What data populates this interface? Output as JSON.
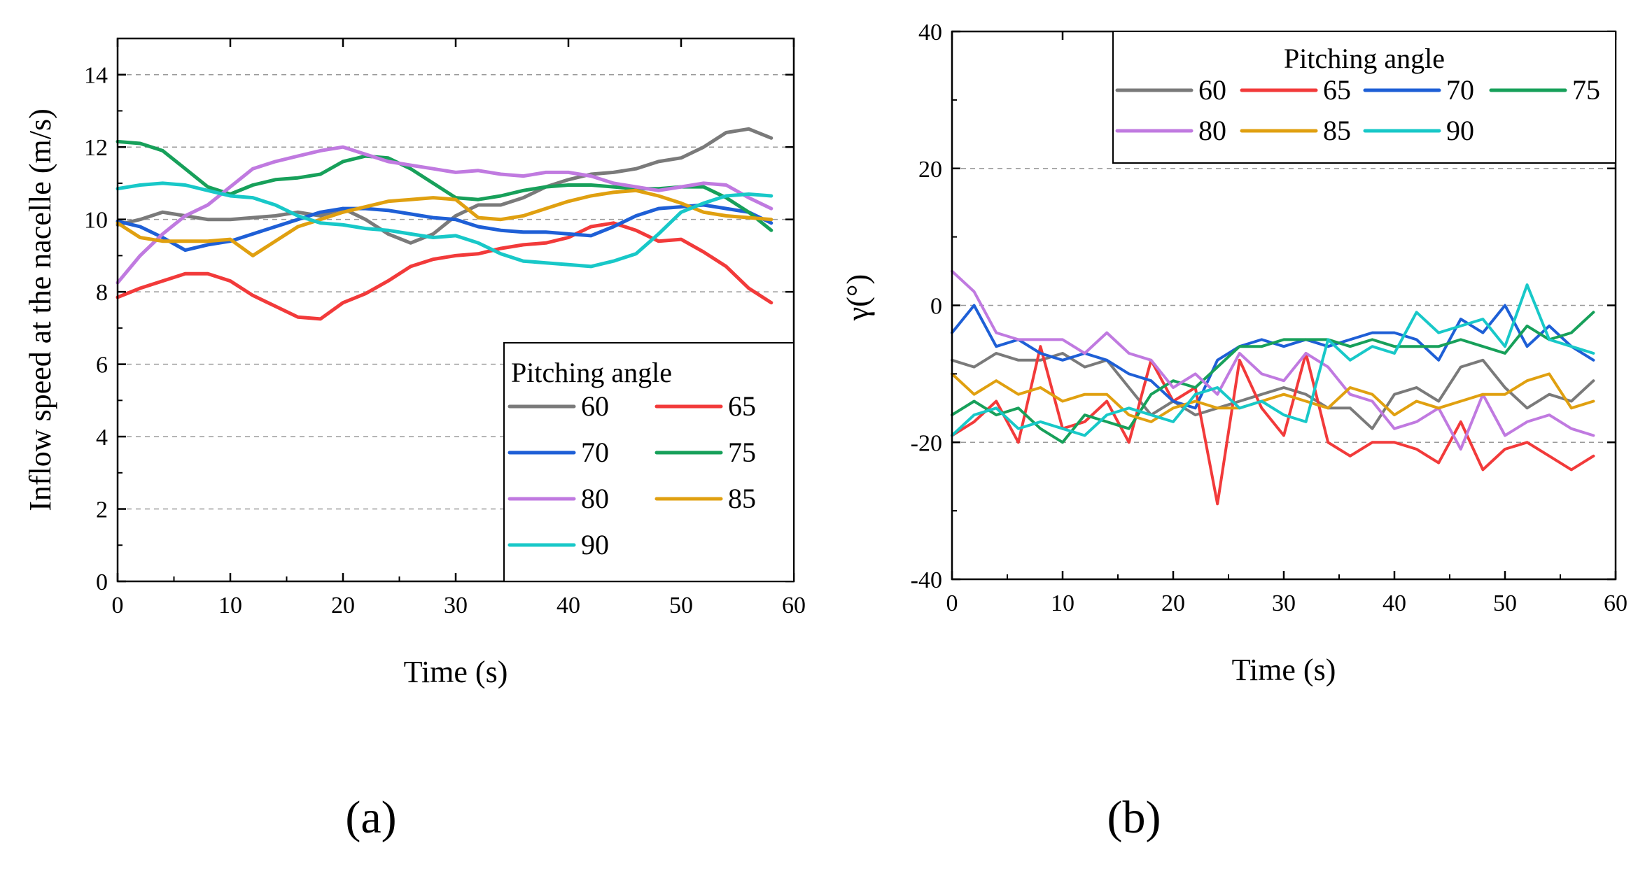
{
  "figure": {
    "panel_labels": [
      "(a)",
      "(b)"
    ],
    "colors": {
      "60": "#7a7a7a",
      "65": "#f23a3a",
      "70": "#1e5fd6",
      "75": "#17a05a",
      "80": "#c07ae0",
      "85": "#e0a010",
      "90": "#18c8c8"
    }
  },
  "chart_data": [
    {
      "type": "line",
      "title": "",
      "xlabel": "Time (s)",
      "ylabel": "Inflow speed at the nacelle (m/s)",
      "xlim": [
        0,
        60
      ],
      "ylim": [
        0,
        15
      ],
      "xticks": [
        0,
        10,
        20,
        30,
        40,
        50,
        60
      ],
      "yticks": [
        0,
        2,
        4,
        6,
        8,
        10,
        12,
        14
      ],
      "grid": "horizontal-dashed",
      "legend": {
        "title": "Pitching angle",
        "position": "bottom-right",
        "columns": 2
      },
      "x": [
        0,
        2,
        4,
        6,
        8,
        10,
        12,
        14,
        16,
        18,
        20,
        22,
        24,
        26,
        28,
        30,
        32,
        34,
        36,
        38,
        40,
        42,
        44,
        46,
        48,
        50,
        52,
        54,
        56,
        58
      ],
      "series": [
        {
          "name": "60",
          "values": [
            9.85,
            10.0,
            10.2,
            10.1,
            10.0,
            10.0,
            10.05,
            10.1,
            10.2,
            10.1,
            10.3,
            10.0,
            9.6,
            9.35,
            9.6,
            10.1,
            10.4,
            10.4,
            10.6,
            10.9,
            11.1,
            11.25,
            11.3,
            11.4,
            11.6,
            11.7,
            12.0,
            12.4,
            12.5,
            12.25
          ]
        },
        {
          "name": "65",
          "values": [
            7.85,
            8.1,
            8.3,
            8.5,
            8.5,
            8.3,
            7.9,
            7.6,
            7.3,
            7.25,
            7.7,
            7.95,
            8.3,
            8.7,
            8.9,
            9.0,
            9.05,
            9.2,
            9.3,
            9.35,
            9.5,
            9.8,
            9.9,
            9.7,
            9.4,
            9.45,
            9.1,
            8.7,
            8.1,
            7.7
          ]
        },
        {
          "name": "70",
          "values": [
            9.95,
            9.8,
            9.5,
            9.15,
            9.3,
            9.4,
            9.6,
            9.8,
            10.0,
            10.2,
            10.3,
            10.3,
            10.25,
            10.15,
            10.05,
            10.0,
            9.8,
            9.7,
            9.65,
            9.65,
            9.6,
            9.55,
            9.8,
            10.1,
            10.3,
            10.35,
            10.4,
            10.3,
            10.2,
            9.9
          ]
        },
        {
          "name": "75",
          "values": [
            12.15,
            12.1,
            11.9,
            11.4,
            10.9,
            10.7,
            10.95,
            11.1,
            11.15,
            11.25,
            11.6,
            11.75,
            11.7,
            11.4,
            11.0,
            10.6,
            10.55,
            10.65,
            10.8,
            10.9,
            10.95,
            10.95,
            10.9,
            10.85,
            10.85,
            10.9,
            10.9,
            10.6,
            10.2,
            9.7
          ]
        },
        {
          "name": "80",
          "values": [
            8.25,
            9.0,
            9.6,
            10.1,
            10.4,
            10.9,
            11.4,
            11.6,
            11.75,
            11.9,
            12.0,
            11.8,
            11.6,
            11.5,
            11.4,
            11.3,
            11.35,
            11.25,
            11.2,
            11.3,
            11.3,
            11.2,
            11.0,
            10.9,
            10.8,
            10.9,
            11.0,
            10.95,
            10.6,
            10.3
          ]
        },
        {
          "name": "85",
          "values": [
            9.9,
            9.5,
            9.4,
            9.4,
            9.4,
            9.45,
            9.0,
            9.4,
            9.8,
            10.0,
            10.2,
            10.35,
            10.5,
            10.55,
            10.6,
            10.55,
            10.05,
            10.0,
            10.1,
            10.3,
            10.5,
            10.65,
            10.75,
            10.8,
            10.65,
            10.45,
            10.2,
            10.1,
            10.05,
            10.0
          ]
        },
        {
          "name": "90",
          "values": [
            10.85,
            10.95,
            11.0,
            10.95,
            10.8,
            10.65,
            10.6,
            10.4,
            10.1,
            9.9,
            9.85,
            9.75,
            9.7,
            9.6,
            9.5,
            9.55,
            9.35,
            9.05,
            8.85,
            8.8,
            8.75,
            8.7,
            8.85,
            9.05,
            9.6,
            10.2,
            10.45,
            10.65,
            10.7,
            10.65
          ]
        }
      ]
    },
    {
      "type": "line",
      "title": "",
      "xlabel": "Time (s)",
      "ylabel": "γ(°)",
      "xlim": [
        0,
        60
      ],
      "ylim": [
        -40,
        40
      ],
      "xticks": [
        0,
        10,
        20,
        30,
        40,
        50,
        60
      ],
      "yticks": [
        -40,
        -20,
        0,
        20,
        40
      ],
      "grid": "horizontal-dashed",
      "legend": {
        "title": "Pitching angle",
        "position": "top-right",
        "columns": 4
      },
      "x": [
        0,
        2,
        4,
        6,
        8,
        10,
        12,
        14,
        16,
        18,
        20,
        22,
        24,
        26,
        28,
        30,
        32,
        34,
        36,
        38,
        40,
        42,
        44,
        46,
        48,
        50,
        52,
        54,
        56,
        58
      ],
      "series": [
        {
          "name": "60",
          "values": [
            -8,
            -9,
            -7,
            -8,
            -8,
            -7,
            -9,
            -8,
            -12,
            -16,
            -14,
            -16,
            -15,
            -14,
            -13,
            -12,
            -13,
            -15,
            -15,
            -18,
            -13,
            -12,
            -14,
            -9,
            -8,
            -12,
            -15,
            -13,
            -14,
            -11
          ]
        },
        {
          "name": "65",
          "values": [
            -19,
            -17,
            -14,
            -20,
            -6,
            -18,
            -17,
            -14,
            -20,
            -8,
            -14,
            -12,
            -29,
            -8,
            -15,
            -19,
            -7,
            -20,
            -22,
            -20,
            -20,
            -21,
            -23,
            -17,
            -24,
            -21,
            -20,
            -22,
            -24,
            -22
          ]
        },
        {
          "name": "70",
          "values": [
            -4,
            0,
            -6,
            -5,
            -7,
            -8,
            -7,
            -8,
            -10,
            -11,
            -14,
            -15,
            -8,
            -6,
            -5,
            -6,
            -5,
            -6,
            -5,
            -4,
            -4,
            -5,
            -8,
            -2,
            -4,
            0,
            -6,
            -3,
            -6,
            -8
          ]
        },
        {
          "name": "75",
          "values": [
            -16,
            -14,
            -16,
            -15,
            -18,
            -20,
            -16,
            -17,
            -18,
            -13,
            -11,
            -12,
            -9,
            -6,
            -6,
            -5,
            -5,
            -5,
            -6,
            -5,
            -6,
            -6,
            -6,
            -5,
            -6,
            -7,
            -3,
            -5,
            -4,
            -1
          ]
        },
        {
          "name": "80",
          "values": [
            5,
            2,
            -4,
            -5,
            -5,
            -5,
            -7,
            -4,
            -7,
            -8,
            -12,
            -10,
            -13,
            -7,
            -10,
            -11,
            -7,
            -9,
            -13,
            -14,
            -18,
            -17,
            -15,
            -21,
            -13,
            -19,
            -17,
            -16,
            -18,
            -19
          ]
        },
        {
          "name": "85",
          "values": [
            -10,
            -13,
            -11,
            -13,
            -12,
            -14,
            -13,
            -13,
            -16,
            -17,
            -15,
            -14,
            -15,
            -15,
            -14,
            -13,
            -14,
            -15,
            -12,
            -13,
            -16,
            -14,
            -15,
            -14,
            -13,
            -13,
            -11,
            -10,
            -15,
            -14
          ]
        },
        {
          "name": "90",
          "values": [
            -19,
            -16,
            -15,
            -18,
            -17,
            -18,
            -19,
            -16,
            -15,
            -16,
            -17,
            -13,
            -12,
            -15,
            -14,
            -16,
            -17,
            -5,
            -8,
            -6,
            -7,
            -1,
            -4,
            -3,
            -2,
            -6,
            3,
            -5,
            -6,
            -7
          ]
        }
      ]
    }
  ]
}
